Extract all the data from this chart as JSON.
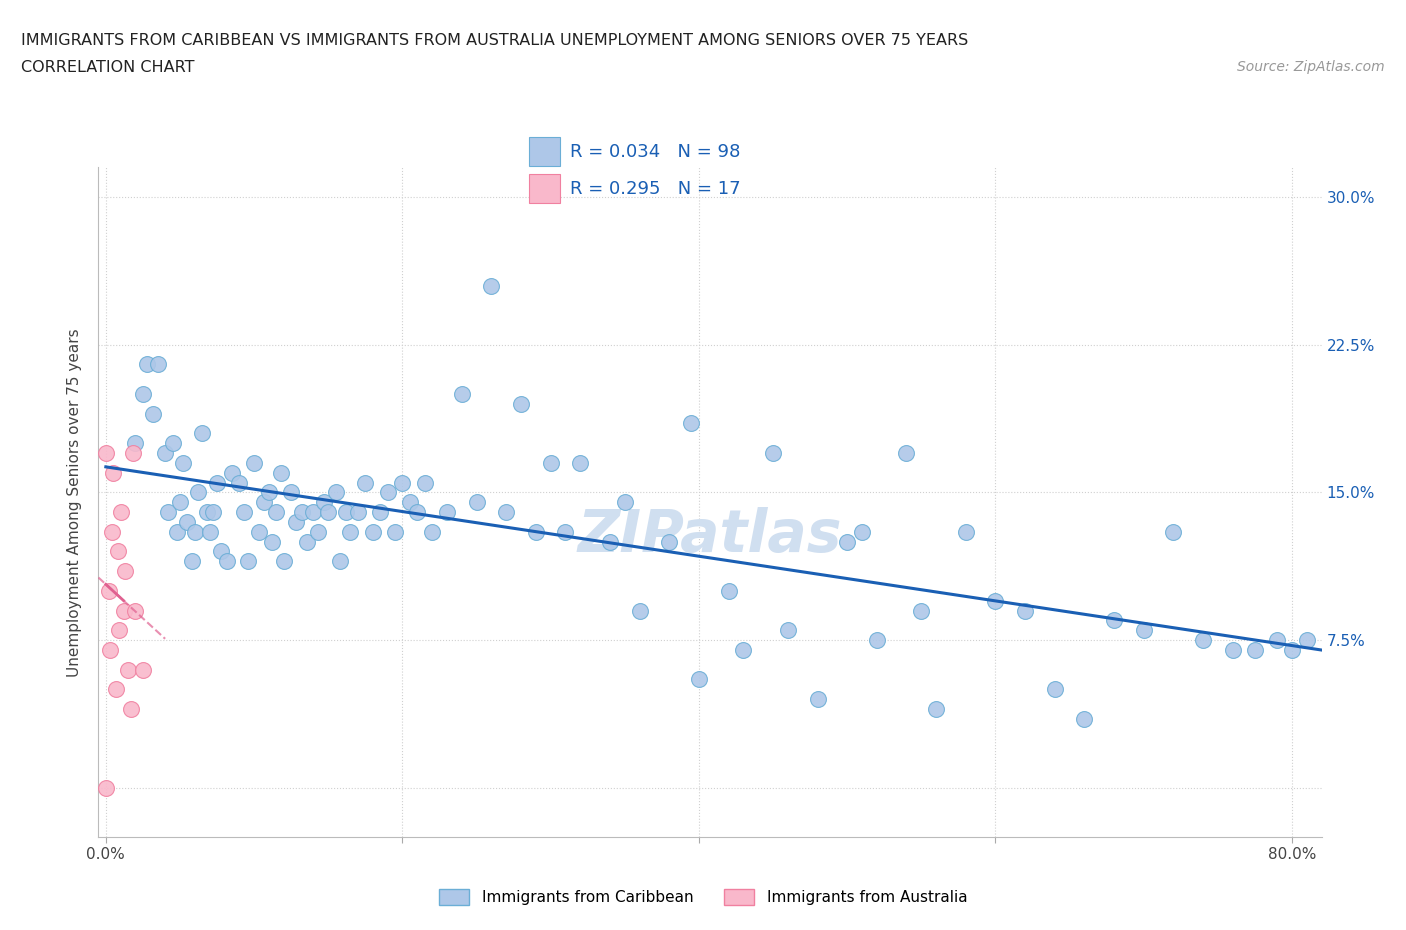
{
  "title_line1": "IMMIGRANTS FROM CARIBBEAN VS IMMIGRANTS FROM AUSTRALIA UNEMPLOYMENT AMONG SENIORS OVER 75 YEARS",
  "title_line2": "CORRELATION CHART",
  "source_text": "Source: ZipAtlas.com",
  "ylabel": "Unemployment Among Seniors over 75 years",
  "xlim": [
    -0.005,
    0.82
  ],
  "ylim": [
    -0.025,
    0.315
  ],
  "x_ticks": [
    0.0,
    0.2,
    0.4,
    0.6,
    0.8
  ],
  "x_tick_labels": [
    "0.0%",
    "",
    "",
    "",
    "80.0%"
  ],
  "y_ticks": [
    0.0,
    0.075,
    0.15,
    0.225,
    0.3
  ],
  "y_tick_labels_right": [
    "",
    "7.5%",
    "15.0%",
    "22.5%",
    "30.0%"
  ],
  "caribbean_fill": "#aec7e8",
  "caribbean_edge": "#6baed6",
  "australia_fill": "#f9b8cb",
  "australia_edge": "#f080a0",
  "trend_caribbean_color": "#1a5fb4",
  "trend_australia_color": "#e06090",
  "watermark_color": "#d0dff0",
  "legend_text_color": "#1a5fb4",
  "caribbean_x": [
    0.02,
    0.025,
    0.028,
    0.032,
    0.035,
    0.04,
    0.042,
    0.045,
    0.048,
    0.05,
    0.052,
    0.055,
    0.058,
    0.06,
    0.062,
    0.065,
    0.068,
    0.07,
    0.072,
    0.075,
    0.078,
    0.082,
    0.085,
    0.09,
    0.093,
    0.096,
    0.1,
    0.103,
    0.107,
    0.11,
    0.112,
    0.115,
    0.118,
    0.12,
    0.125,
    0.128,
    0.132,
    0.136,
    0.14,
    0.143,
    0.147,
    0.15,
    0.155,
    0.158,
    0.162,
    0.165,
    0.17,
    0.175,
    0.18,
    0.185,
    0.19,
    0.195,
    0.2,
    0.205,
    0.21,
    0.215,
    0.22,
    0.23,
    0.24,
    0.25,
    0.26,
    0.27,
    0.28,
    0.29,
    0.3,
    0.31,
    0.32,
    0.34,
    0.35,
    0.36,
    0.38,
    0.395,
    0.4,
    0.42,
    0.43,
    0.45,
    0.46,
    0.48,
    0.5,
    0.51,
    0.52,
    0.54,
    0.55,
    0.56,
    0.58,
    0.6,
    0.62,
    0.64,
    0.66,
    0.68,
    0.7,
    0.72,
    0.74,
    0.76,
    0.775,
    0.79,
    0.8,
    0.81
  ],
  "caribbean_y": [
    0.175,
    0.2,
    0.215,
    0.19,
    0.215,
    0.17,
    0.14,
    0.175,
    0.13,
    0.145,
    0.165,
    0.135,
    0.115,
    0.13,
    0.15,
    0.18,
    0.14,
    0.13,
    0.14,
    0.155,
    0.12,
    0.115,
    0.16,
    0.155,
    0.14,
    0.115,
    0.165,
    0.13,
    0.145,
    0.15,
    0.125,
    0.14,
    0.16,
    0.115,
    0.15,
    0.135,
    0.14,
    0.125,
    0.14,
    0.13,
    0.145,
    0.14,
    0.15,
    0.115,
    0.14,
    0.13,
    0.14,
    0.155,
    0.13,
    0.14,
    0.15,
    0.13,
    0.155,
    0.145,
    0.14,
    0.155,
    0.13,
    0.14,
    0.2,
    0.145,
    0.255,
    0.14,
    0.195,
    0.13,
    0.165,
    0.13,
    0.165,
    0.125,
    0.145,
    0.09,
    0.125,
    0.185,
    0.055,
    0.1,
    0.07,
    0.17,
    0.08,
    0.045,
    0.125,
    0.13,
    0.075,
    0.17,
    0.09,
    0.04,
    0.13,
    0.095,
    0.09,
    0.05,
    0.035,
    0.085,
    0.08,
    0.13,
    0.075,
    0.07,
    0.07,
    0.075,
    0.07,
    0.075
  ],
  "australia_x": [
    0.0,
    0.0,
    0.002,
    0.003,
    0.004,
    0.005,
    0.007,
    0.008,
    0.009,
    0.01,
    0.012,
    0.013,
    0.015,
    0.017,
    0.018,
    0.02,
    0.025
  ],
  "australia_y": [
    0.17,
    0.0,
    0.1,
    0.07,
    0.13,
    0.16,
    0.05,
    0.12,
    0.08,
    0.14,
    0.09,
    0.11,
    0.06,
    0.04,
    0.17,
    0.09,
    0.06
  ]
}
